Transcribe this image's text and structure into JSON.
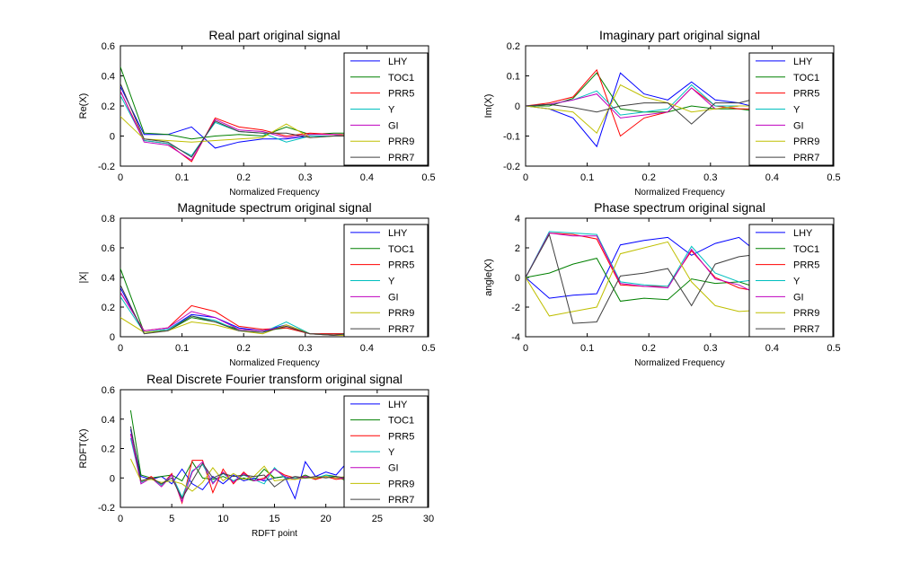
{
  "window": {
    "title": ""
  },
  "legend_colors": {
    "LHY": "#0000ff",
    "TOC1": "#008000",
    "PRR5": "#ff0000",
    "Y": "#00bfbf",
    "GI": "#bf00bf",
    "PRR9": "#bfbf00",
    "PRR7": "#404040"
  },
  "chart_data": [
    {
      "type": "line",
      "title": "Real part original signal",
      "xlabel": "Normalized Frequency",
      "ylabel": "Re(X)",
      "xlim": [
        0,
        0.5
      ],
      "ylim": [
        -0.2,
        0.6
      ],
      "xticks": [
        "0",
        "0.1",
        "0.2",
        "0.3",
        "0.4",
        "0.5"
      ],
      "yticks": [
        "-0.2",
        "0",
        "0.2",
        "0.4",
        "0.6"
      ],
      "legend": "top-right",
      "x": [
        0,
        0.0385,
        0.0769,
        0.1154,
        0.1538,
        0.1923,
        0.2308,
        0.2692,
        0.3077,
        0.3462,
        0.3846
      ],
      "series": [
        {
          "name": "LHY",
          "values": [
            0.33,
            0.01,
            0.01,
            0.06,
            -0.08,
            -0.04,
            -0.02,
            -0.02,
            0.0,
            0.0,
            0.01
          ]
        },
        {
          "name": "TOC1",
          "values": [
            0.46,
            0.02,
            0.01,
            -0.02,
            0.0,
            0.01,
            0.0,
            0.06,
            0.01,
            0.02,
            0.02
          ]
        },
        {
          "name": "PRR5",
          "values": [
            0.3,
            -0.03,
            -0.05,
            -0.17,
            0.12,
            0.06,
            0.04,
            0.0,
            0.02,
            0.01,
            0.01
          ]
        },
        {
          "name": "Y",
          "values": [
            0.27,
            -0.03,
            -0.05,
            -0.13,
            0.09,
            0.03,
            0.02,
            -0.04,
            0.0,
            0.0,
            0.02
          ]
        },
        {
          "name": "GI",
          "values": [
            0.3,
            -0.04,
            -0.06,
            -0.16,
            0.11,
            0.04,
            0.03,
            -0.01,
            0.01,
            0.01,
            0.0
          ]
        },
        {
          "name": "PRR9",
          "values": [
            0.13,
            -0.02,
            -0.03,
            -0.04,
            -0.03,
            -0.02,
            -0.01,
            0.08,
            -0.01,
            0.0,
            0.01
          ]
        },
        {
          "name": "PRR7",
          "values": [
            0.35,
            -0.02,
            -0.04,
            -0.14,
            0.1,
            0.03,
            0.02,
            0.02,
            -0.01,
            0.0,
            0.0
          ]
        }
      ]
    },
    {
      "type": "line",
      "title": "Imaginary part original signal",
      "xlabel": "Normalized Frequency",
      "ylabel": "Im(X)",
      "xlim": [
        0,
        0.5
      ],
      "ylim": [
        -0.2,
        0.2
      ],
      "xticks": [
        "0",
        "0.1",
        "0.2",
        "0.3",
        "0.4",
        "0.5"
      ],
      "yticks": [
        "-0.2",
        "-0.1",
        "0",
        "0.1",
        "0.2"
      ],
      "legend": "top-right",
      "x": [
        0,
        0.0385,
        0.0769,
        0.1154,
        0.1538,
        0.1923,
        0.2308,
        0.2692,
        0.3077,
        0.3462,
        0.3846
      ],
      "series": [
        {
          "name": "LHY",
          "values": [
            0,
            -0.01,
            -0.04,
            -0.135,
            0.11,
            0.04,
            0.02,
            0.08,
            0.02,
            0.01,
            -0.01
          ]
        },
        {
          "name": "TOC1",
          "values": [
            0,
            0.0,
            0.025,
            0.11,
            -0.01,
            -0.02,
            -0.02,
            0.0,
            -0.01,
            -0.01,
            -0.02
          ]
        },
        {
          "name": "PRR5",
          "values": [
            0,
            0.01,
            0.03,
            0.12,
            -0.1,
            -0.04,
            -0.02,
            0.06,
            0.0,
            -0.01,
            -0.01
          ]
        },
        {
          "name": "Y",
          "values": [
            0,
            0.005,
            0.02,
            0.05,
            -0.03,
            -0.02,
            -0.01,
            0.07,
            0.0,
            0.0,
            0.0
          ]
        },
        {
          "name": "GI",
          "values": [
            0,
            0.005,
            0.02,
            0.04,
            -0.04,
            -0.03,
            -0.02,
            0.06,
            -0.01,
            0.0,
            0.0
          ]
        },
        {
          "name": "PRR9",
          "values": [
            0,
            -0.01,
            -0.02,
            -0.09,
            0.07,
            0.03,
            0.01,
            -0.02,
            -0.01,
            0.0,
            0.0
          ]
        },
        {
          "name": "PRR7",
          "values": [
            0,
            0.005,
            -0.005,
            -0.02,
            0.0,
            0.01,
            0.01,
            -0.06,
            0.01,
            0.01,
            0.03
          ]
        }
      ]
    },
    {
      "type": "line",
      "title": "Magnitude spectrum original signal",
      "xlabel": "Normalized Frequency",
      "ylabel": "|X|",
      "xlim": [
        0,
        0.5
      ],
      "ylim": [
        0,
        0.8
      ],
      "xticks": [
        "0",
        "0.1",
        "0.2",
        "0.3",
        "0.4",
        "0.5"
      ],
      "yticks": [
        "0",
        "0.2",
        "0.4",
        "0.6",
        "0.8"
      ],
      "legend": "top-right",
      "x": [
        0,
        0.0385,
        0.0769,
        0.1154,
        0.1538,
        0.1923,
        0.2308,
        0.2692,
        0.3077,
        0.3462,
        0.3846
      ],
      "series": [
        {
          "name": "LHY",
          "values": [
            0.33,
            0.03,
            0.05,
            0.15,
            0.13,
            0.06,
            0.04,
            0.08,
            0.02,
            0.02,
            0.02
          ]
        },
        {
          "name": "TOC1",
          "values": [
            0.46,
            0.03,
            0.04,
            0.13,
            0.1,
            0.05,
            0.04,
            0.06,
            0.02,
            0.02,
            0.02
          ]
        },
        {
          "name": "PRR5",
          "values": [
            0.3,
            0.04,
            0.06,
            0.21,
            0.17,
            0.07,
            0.05,
            0.06,
            0.02,
            0.02,
            0.02
          ]
        },
        {
          "name": "Y",
          "values": [
            0.27,
            0.03,
            0.05,
            0.14,
            0.11,
            0.04,
            0.03,
            0.1,
            0.02,
            0.01,
            0.02
          ]
        },
        {
          "name": "GI",
          "values": [
            0.3,
            0.04,
            0.06,
            0.17,
            0.13,
            0.05,
            0.04,
            0.07,
            0.02,
            0.01,
            0.01
          ]
        },
        {
          "name": "PRR9",
          "values": [
            0.13,
            0.03,
            0.04,
            0.1,
            0.08,
            0.04,
            0.02,
            0.08,
            0.02,
            0.01,
            0.01
          ]
        },
        {
          "name": "PRR7",
          "values": [
            0.35,
            0.02,
            0.04,
            0.14,
            0.1,
            0.04,
            0.03,
            0.07,
            0.02,
            0.01,
            0.03
          ]
        }
      ]
    },
    {
      "type": "line",
      "title": "Phase spectrum original signal",
      "xlabel": "Normalized Frequency",
      "ylabel": "angle(X)",
      "xlim": [
        0,
        0.5
      ],
      "ylim": [
        -4,
        4
      ],
      "xticks": [
        "0",
        "0.1",
        "0.2",
        "0.3",
        "0.4",
        "0.5"
      ],
      "yticks": [
        "-4",
        "-2",
        "0",
        "2",
        "4"
      ],
      "legend": "top-right",
      "x": [
        0,
        0.0385,
        0.0769,
        0.1154,
        0.1538,
        0.1923,
        0.2308,
        0.2692,
        0.3077,
        0.3462,
        0.3846
      ],
      "series": [
        {
          "name": "LHY",
          "values": [
            0,
            -1.4,
            -1.2,
            -1.1,
            2.2,
            2.5,
            2.7,
            1.5,
            2.3,
            2.7,
            1.4
          ]
        },
        {
          "name": "TOC1",
          "values": [
            0,
            0.3,
            0.9,
            1.3,
            -1.6,
            -1.4,
            -1.5,
            -0.1,
            -0.4,
            -0.3,
            -0.8
          ]
        },
        {
          "name": "PRR5",
          "values": [
            0,
            3.0,
            2.9,
            2.6,
            -0.5,
            -0.6,
            -0.6,
            1.8,
            0.0,
            -0.7,
            -1.0
          ]
        },
        {
          "name": "Y",
          "values": [
            0,
            3.1,
            3.0,
            2.9,
            -0.3,
            -0.5,
            -0.6,
            2.1,
            0.3,
            -0.3,
            -0.1
          ]
        },
        {
          "name": "GI",
          "values": [
            0,
            3.0,
            2.8,
            2.8,
            -0.4,
            -0.6,
            -0.7,
            1.9,
            -0.1,
            -0.5,
            -1.3
          ]
        },
        {
          "name": "PRR9",
          "values": [
            0,
            -2.6,
            -2.3,
            -2.0,
            1.6,
            2.0,
            2.4,
            -0.3,
            -1.9,
            -2.3,
            -2.2
          ]
        },
        {
          "name": "PRR7",
          "values": [
            0,
            2.9,
            -3.1,
            -3.0,
            0.1,
            0.3,
            0.6,
            -1.9,
            0.9,
            1.4,
            1.6
          ]
        }
      ]
    },
    {
      "type": "line",
      "title": "Real Discrete Fourier transform original signal",
      "xlabel": "RDFT point",
      "ylabel": "RDFT(X)",
      "xlim": [
        0,
        30
      ],
      "ylim": [
        -0.2,
        0.6
      ],
      "xticks": [
        "0",
        "5",
        "10",
        "15",
        "20",
        "25",
        "30"
      ],
      "yticks": [
        "-0.2",
        "0",
        "0.2",
        "0.4",
        "0.6"
      ],
      "legend": "top-right",
      "x": [
        1,
        2,
        3,
        4,
        5,
        6,
        7,
        8,
        9,
        10,
        11,
        12,
        13,
        14,
        15,
        16,
        17,
        18,
        19,
        20,
        21,
        22,
        23
      ],
      "series": [
        {
          "name": "LHY",
          "values": [
            0.33,
            0.01,
            -0.01,
            0.01,
            -0.04,
            0.06,
            -0.04,
            -0.08,
            0.01,
            -0.04,
            0.02,
            -0.02,
            0.0,
            -0.02,
            0.0,
            0.01,
            -0.14,
            0.11,
            0.01,
            0.04,
            0.02,
            0.1,
            -0.01
          ]
        },
        {
          "name": "TOC1",
          "values": [
            0.46,
            0.02,
            0.0,
            0.01,
            0.02,
            -0.02,
            0.11,
            0.0,
            -0.01,
            0.01,
            -0.02,
            0.0,
            -0.02,
            0.06,
            0.0,
            0.01,
            -0.01,
            0.02,
            -0.01,
            0.02,
            0.01,
            -0.02,
            0.0
          ]
        },
        {
          "name": "PRR5",
          "values": [
            0.3,
            -0.03,
            0.01,
            -0.05,
            0.03,
            -0.17,
            0.12,
            0.12,
            -0.1,
            0.06,
            -0.04,
            0.04,
            -0.02,
            0.0,
            0.06,
            0.02,
            0.0,
            0.01,
            -0.01,
            0.01,
            -0.01,
            0.0,
            0.0
          ]
        },
        {
          "name": "Y",
          "values": [
            0.27,
            -0.03,
            0.0,
            -0.05,
            0.02,
            -0.13,
            0.05,
            0.09,
            -0.03,
            0.03,
            -0.02,
            0.02,
            -0.01,
            -0.04,
            0.07,
            0.0,
            0.0,
            0.0,
            0.0,
            0.02,
            0.0,
            0.0,
            0.0
          ]
        },
        {
          "name": "GI",
          "values": [
            0.3,
            -0.04,
            0.0,
            -0.06,
            0.02,
            -0.16,
            0.04,
            0.11,
            -0.04,
            0.04,
            -0.03,
            0.03,
            -0.02,
            -0.01,
            0.06,
            0.01,
            -0.01,
            0.01,
            0.0,
            0.01,
            0.0,
            0.0,
            0.0
          ]
        },
        {
          "name": "PRR9",
          "values": [
            0.13,
            -0.02,
            -0.01,
            -0.03,
            -0.02,
            -0.04,
            -0.09,
            -0.03,
            0.07,
            -0.02,
            0.03,
            -0.01,
            0.01,
            0.08,
            -0.02,
            -0.01,
            -0.01,
            0.0,
            0.0,
            0.01,
            0.0,
            0.01,
            0.0
          ]
        },
        {
          "name": "PRR7",
          "values": [
            0.35,
            -0.02,
            0.0,
            -0.04,
            0.0,
            -0.14,
            -0.02,
            0.1,
            0.0,
            0.03,
            0.01,
            0.02,
            0.01,
            0.02,
            -0.06,
            -0.01,
            0.01,
            0.0,
            0.01,
            0.0,
            0.01,
            0.0,
            0.03
          ]
        }
      ]
    }
  ]
}
